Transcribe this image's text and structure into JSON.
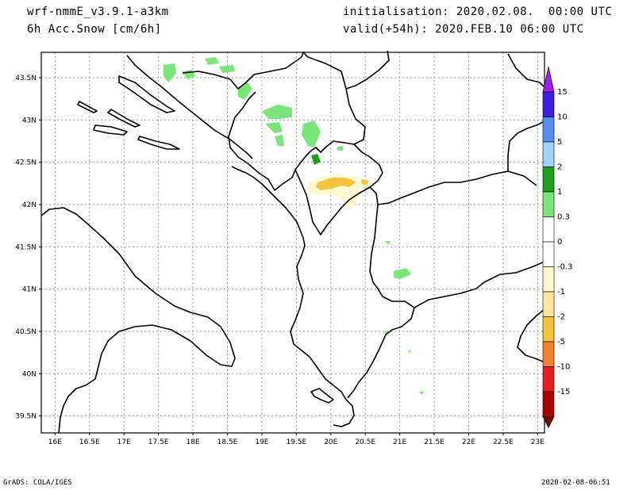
{
  "header": {
    "model": "wrf-nmmE_v3.9.1-a3km",
    "field": "6h Acc.Snow [cm/6h]",
    "init": "initialisation: 2020.02.08.  00:00 UTC",
    "valid": "valid(+54h): 2020.FEB.10 06:00 UTC"
  },
  "footer": {
    "credit": "GrADS: COLA/IGES",
    "timestamp": "2020-02-08-06:51"
  },
  "map": {
    "lat_labels": [
      "43.5N",
      "43N",
      "42.5N",
      "42N",
      "41.5N",
      "41N",
      "40.5N",
      "40N",
      "39.5N"
    ],
    "lat_values": [
      43.5,
      43,
      42.5,
      42,
      41.5,
      41,
      40.5,
      40,
      39.5
    ],
    "lon_labels": [
      "16E",
      "16.5E",
      "17E",
      "17.5E",
      "18E",
      "18.5E",
      "19E",
      "19.5E",
      "20E",
      "20.5E",
      "21E",
      "21.5E",
      "22E",
      "22.5E",
      "23E"
    ],
    "lon_values": [
      16,
      16.5,
      17,
      17.5,
      18,
      18.5,
      19,
      19.5,
      20,
      20.5,
      21,
      21.5,
      22,
      22.5,
      23
    ],
    "lon_range": [
      15.8,
      23.1
    ],
    "lat_range": [
      39.3,
      43.8
    ],
    "grid": true
  },
  "legend": {
    "labels": [
      "15",
      "10",
      "5",
      "2",
      "1",
      "0.3",
      "0",
      "-0.3",
      "-1",
      "-2",
      "-5",
      "-10",
      "-15"
    ],
    "colors": [
      "#3c1ee6",
      "#5a8cf0",
      "#a0d2fa",
      "#1e9e1e",
      "#7ae67a",
      "#ffffff",
      "#ffffff",
      "#fffad2",
      "#fae6a0",
      "#f5c23c",
      "#f08232",
      "#e61e1e",
      "#aa0000"
    ],
    "top_arrow_color": "#a01ef0",
    "bottom_arrow_color": "#780000"
  }
}
